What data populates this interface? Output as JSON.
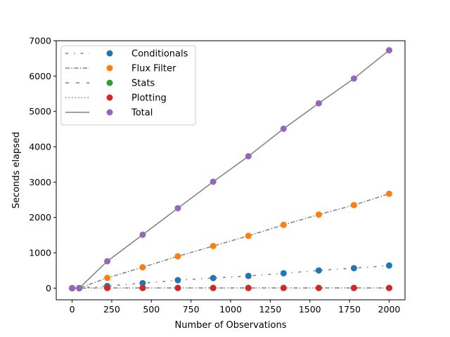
{
  "chart_data": {
    "type": "line",
    "xlabel": "Number of Observations",
    "ylabel": "Seconds elapsed",
    "xlim": [
      -100,
      2100
    ],
    "ylim": [
      -330,
      7000
    ],
    "xticks": [
      0,
      250,
      500,
      750,
      1000,
      1250,
      1500,
      1750,
      2000
    ],
    "yticks": [
      0,
      1000,
      2000,
      3000,
      4000,
      5000,
      6000,
      7000
    ],
    "grid": false,
    "legend_position": "top-left",
    "x": [
      0,
      45,
      222,
      445,
      667,
      890,
      1112,
      1334,
      1556,
      1778,
      2000
    ],
    "series": [
      {
        "name": "Conditionals",
        "line_style": "loosely-dashdotted",
        "marker_color": "#1f77b4",
        "values": [
          0,
          0,
          60,
          140,
          225,
          285,
          345,
          420,
          500,
          565,
          640
        ]
      },
      {
        "name": "Flux Filter",
        "line_style": "dashdot",
        "marker_color": "#ff7f0e",
        "values": [
          0,
          0,
          290,
          590,
          900,
          1190,
          1480,
          1790,
          2080,
          2350,
          2670
        ]
      },
      {
        "name": "Stats",
        "line_style": "loosely-dashed",
        "marker_color": "#2ca02c",
        "values": [
          0,
          0,
          5,
          5,
          5,
          5,
          5,
          5,
          5,
          5,
          5
        ]
      },
      {
        "name": "Plotting",
        "line_style": "dotted",
        "marker_color": "#d62728",
        "values": [
          0,
          0,
          5,
          5,
          5,
          5,
          5,
          5,
          5,
          5,
          5
        ]
      },
      {
        "name": "Total",
        "line_style": "solid",
        "marker_color": "#9467bd",
        "values": [
          0,
          0,
          760,
          1510,
          2260,
          3010,
          3730,
          4510,
          5230,
          5930,
          6730
        ]
      }
    ]
  }
}
